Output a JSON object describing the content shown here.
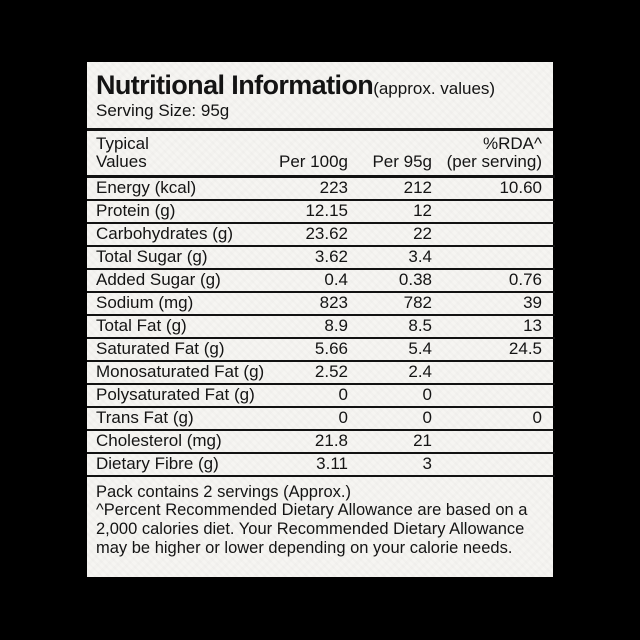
{
  "label": {
    "title": "Nutritional Information",
    "title_suffix": "(approx. values)",
    "serving_size": "Serving Size: 95g",
    "table": {
      "header": {
        "col1_line1": "Typical",
        "col1_line2": "Values",
        "col2": "Per 100g",
        "col3": "Per 95g",
        "col4_line1": "%RDA^",
        "col4_line2": "(per serving)"
      },
      "rows": [
        {
          "name": "Energy (kcal)",
          "per100g": "223",
          "per95g": "212",
          "rda": "10.60"
        },
        {
          "name": "Protein (g)",
          "per100g": "12.15",
          "per95g": "12",
          "rda": ""
        },
        {
          "name": "Carbohydrates (g)",
          "per100g": "23.62",
          "per95g": "22",
          "rda": ""
        },
        {
          "name": "Total Sugar (g)",
          "per100g": "3.62",
          "per95g": "3.4",
          "rda": ""
        },
        {
          "name": "Added Sugar (g)",
          "per100g": "0.4",
          "per95g": "0.38",
          "rda": "0.76"
        },
        {
          "name": "Sodium (mg)",
          "per100g": "823",
          "per95g": "782",
          "rda": "39"
        },
        {
          "name": "Total Fat (g)",
          "per100g": "8.9",
          "per95g": "8.5",
          "rda": "13"
        },
        {
          "name": "Saturated Fat (g)",
          "per100g": "5.66",
          "per95g": "5.4",
          "rda": "24.5"
        },
        {
          "name": "Monosaturated Fat (g)",
          "per100g": "2.52",
          "per95g": "2.4",
          "rda": ""
        },
        {
          "name": "Polysaturated Fat (g)",
          "per100g": "0",
          "per95g": "0",
          "rda": ""
        },
        {
          "name": "Trans Fat (g)",
          "per100g": "0",
          "per95g": "0",
          "rda": "0"
        },
        {
          "name": "Cholesterol (mg)",
          "per100g": "21.8",
          "per95g": "21",
          "rda": ""
        },
        {
          "name": "Dietary Fibre (g)",
          "per100g": "3.11",
          "per95g": "3",
          "rda": ""
        }
      ]
    },
    "footer": {
      "pack_line": "Pack contains 2 servings (Approx.)",
      "note_line1": "^Percent Recommended Dietary Allowance are based on a",
      "note_line2": "2,000 calories diet. Your Recommended Dietary Allowance",
      "note_line3": "may be higher or lower depending on your calorie needs."
    },
    "colors": {
      "background": "#000000",
      "paper": "#f6f5f2",
      "text": "#141414",
      "rule": "#121212"
    }
  }
}
